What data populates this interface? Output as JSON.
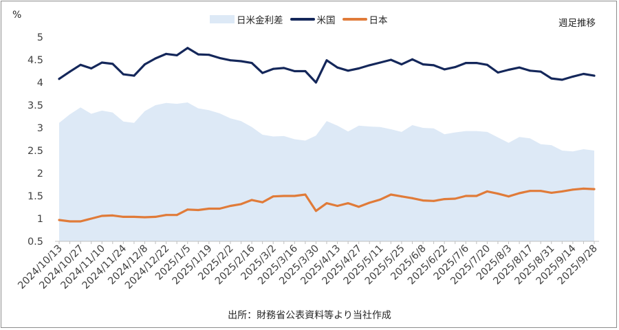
{
  "chart_data": {
    "type": "line",
    "unit_label": "%",
    "note": "週足推移",
    "source": "出所：財務省公表資料等より当社作成",
    "ylim": [
      0.5,
      5
    ],
    "yticks": [
      "0.5",
      "1",
      "1.5",
      "2",
      "2.5",
      "3",
      "3.5",
      "4",
      "4.5",
      "5"
    ],
    "ytick_values": [
      0.5,
      1,
      1.5,
      2,
      2.5,
      3,
      3.5,
      4,
      4.5,
      5
    ],
    "x": [
      "2024/10/13",
      "2024/10/20",
      "2024/10/27",
      "2024/11/3",
      "2024/11/10",
      "2024/11/17",
      "2024/11/24",
      "2024/12/1",
      "2024/12/8",
      "2024/12/15",
      "2024/12/22",
      "2024/12/29",
      "2025/1/5",
      "2025/1/12",
      "2025/1/19",
      "2025/1/26",
      "2025/2/2",
      "2025/2/9",
      "2025/2/16",
      "2025/2/23",
      "2025/3/2",
      "2025/3/9",
      "2025/3/16",
      "2025/3/23",
      "2025/3/30",
      "2025/4/6",
      "2025/4/13",
      "2025/4/20",
      "2025/4/27",
      "2025/5/4",
      "2025/5/11",
      "2025/5/18",
      "2025/5/25",
      "2025/6/1",
      "2025/6/8",
      "2025/6/15",
      "2025/6/22",
      "2025/6/29",
      "2025/7/6",
      "2025/7/13",
      "2025/7/20",
      "2025/7/27",
      "2025/8/3",
      "2025/8/10",
      "2025/8/17",
      "2025/8/24",
      "2025/8/31",
      "2025/9/7",
      "2025/9/14",
      "2025/9/21",
      "2025/9/28"
    ],
    "xtick_labels": [
      "2024/10/13",
      "2024/10/27",
      "2024/11/10",
      "2024/11/24",
      "2024/12/8",
      "2024/12/22",
      "2025/1/5",
      "2025/1/19",
      "2025/2/2",
      "2025/2/16",
      "2025/3/2",
      "2025/3/16",
      "2025/3/30",
      "2025/4/13",
      "2025/4/27",
      "2025/5/11",
      "2025/5/25",
      "2025/6/8",
      "2025/6/22",
      "2025/7/6",
      "2025/7/20",
      "2025/8/3",
      "2025/8/17",
      "2025/8/31",
      "2025/9/14",
      "2025/9/28"
    ],
    "series": [
      {
        "name": "日米金利差",
        "kind": "area",
        "color": "#dde9f6",
        "values": [
          3.11,
          3.3,
          3.45,
          3.31,
          3.38,
          3.34,
          3.14,
          3.11,
          3.37,
          3.5,
          3.55,
          3.53,
          3.56,
          3.43,
          3.39,
          3.32,
          3.21,
          3.15,
          3.02,
          2.85,
          2.81,
          2.82,
          2.75,
          2.72,
          2.83,
          3.15,
          3.05,
          2.92,
          3.05,
          3.03,
          3.02,
          2.97,
          2.91,
          3.06,
          3.0,
          2.99,
          2.86,
          2.9,
          2.93,
          2.93,
          2.91,
          2.79,
          2.67,
          2.8,
          2.77,
          2.64,
          2.62,
          2.5,
          2.48,
          2.53,
          2.5
        ]
      },
      {
        "name": "米国",
        "kind": "line",
        "color": "#14275a",
        "values": [
          4.08,
          4.24,
          4.39,
          4.31,
          4.44,
          4.41,
          4.18,
          4.15,
          4.4,
          4.53,
          4.63,
          4.6,
          4.76,
          4.62,
          4.61,
          4.54,
          4.49,
          4.47,
          4.43,
          4.21,
          4.3,
          4.32,
          4.25,
          4.25,
          4.0,
          4.49,
          4.33,
          4.26,
          4.31,
          4.38,
          4.44,
          4.5,
          4.4,
          4.51,
          4.4,
          4.38,
          4.29,
          4.34,
          4.43,
          4.43,
          4.39,
          4.22,
          4.28,
          4.33,
          4.26,
          4.24,
          4.09,
          4.06,
          4.13,
          4.19,
          4.15
        ]
      },
      {
        "name": "日本",
        "kind": "line",
        "color": "#e07b39",
        "values": [
          0.97,
          0.94,
          0.94,
          1.0,
          1.06,
          1.07,
          1.04,
          1.04,
          1.03,
          1.04,
          1.08,
          1.08,
          1.2,
          1.19,
          1.22,
          1.22,
          1.28,
          1.32,
          1.41,
          1.36,
          1.49,
          1.5,
          1.5,
          1.53,
          1.17,
          1.34,
          1.28,
          1.34,
          1.26,
          1.35,
          1.42,
          1.53,
          1.49,
          1.45,
          1.4,
          1.39,
          1.43,
          1.44,
          1.5,
          1.5,
          1.6,
          1.55,
          1.49,
          1.56,
          1.61,
          1.61,
          1.57,
          1.6,
          1.64,
          1.66,
          1.65
        ]
      }
    ],
    "legend_position": "top-center",
    "grid": false
  }
}
